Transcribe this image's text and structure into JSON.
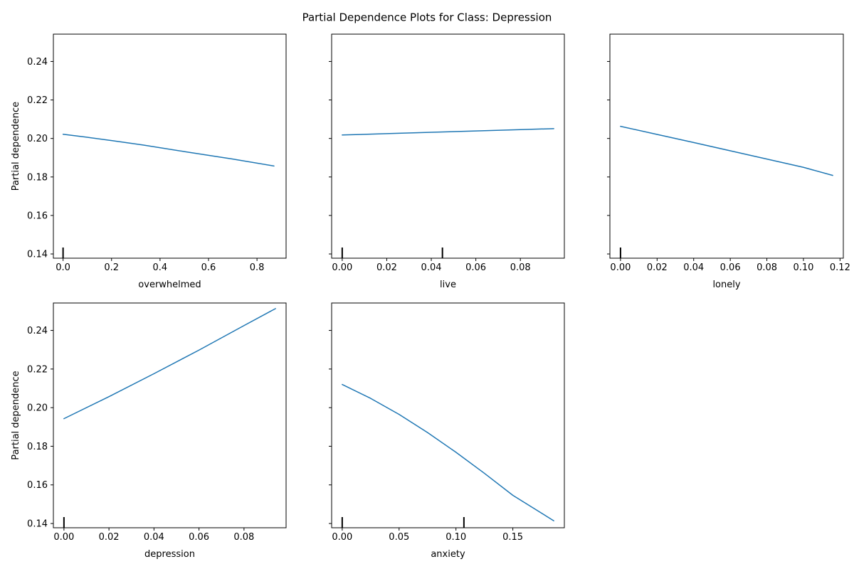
{
  "figure": {
    "title": "Partial Dependence Plots for Class: Depression"
  },
  "style": {
    "line_color": "#1f77b4",
    "axis_color": "#000000",
    "background": "#ffffff"
  },
  "chart_data": [
    {
      "type": "line",
      "xlabel": "overwhelmed",
      "ylabel": "Partial dependence",
      "xlim": [
        -0.04,
        0.92
      ],
      "ylim": [
        0.1378,
        0.2542
      ],
      "xticks": [
        0.0,
        0.2,
        0.4,
        0.6,
        0.8
      ],
      "xtick_labels": [
        "0.0",
        "0.2",
        "0.4",
        "0.6",
        "0.8"
      ],
      "yticks": [
        0.14,
        0.16,
        0.18,
        0.2,
        0.22,
        0.24
      ],
      "ytick_labels": [
        "0.14",
        "0.16",
        "0.18",
        "0.20",
        "0.22",
        "0.24"
      ],
      "show_yticklabels": true,
      "grid": false,
      "x": [
        0.0,
        0.1,
        0.2,
        0.33,
        0.5,
        0.7,
        0.87
      ],
      "y": [
        0.2022,
        0.2006,
        0.1989,
        0.1966,
        0.1932,
        0.1893,
        0.1857
      ],
      "rug": [
        0.0
      ]
    },
    {
      "type": "line",
      "xlabel": "live",
      "ylabel": "",
      "xlim": [
        -0.00475,
        0.09975
      ],
      "ylim": [
        0.1378,
        0.2542
      ],
      "xticks": [
        0.0,
        0.02,
        0.04,
        0.06,
        0.08
      ],
      "xtick_labels": [
        "0.00",
        "0.02",
        "0.04",
        "0.06",
        "0.08"
      ],
      "yticks": [
        0.14,
        0.16,
        0.18,
        0.2,
        0.22,
        0.24
      ],
      "ytick_labels": [
        "0.14",
        "0.16",
        "0.18",
        "0.20",
        "0.22",
        "0.24"
      ],
      "show_yticklabels": false,
      "grid": false,
      "x": [
        0.0,
        0.02,
        0.04,
        0.06,
        0.08,
        0.095
      ],
      "y": [
        0.2018,
        0.2025,
        0.2032,
        0.2039,
        0.2046,
        0.2051
      ],
      "rug": [
        0.0,
        0.045
      ]
    },
    {
      "type": "line",
      "xlabel": "lonely",
      "ylabel": "",
      "xlim": [
        -0.0058,
        0.1218
      ],
      "ylim": [
        0.1378,
        0.2542
      ],
      "xticks": [
        0.0,
        0.02,
        0.04,
        0.06,
        0.08,
        0.1,
        0.12
      ],
      "xtick_labels": [
        "0.00",
        "0.02",
        "0.04",
        "0.06",
        "0.08",
        "0.10",
        "0.12"
      ],
      "yticks": [
        0.14,
        0.16,
        0.18,
        0.2,
        0.22,
        0.24
      ],
      "ytick_labels": [
        "0.14",
        "0.16",
        "0.18",
        "0.20",
        "0.22",
        "0.24"
      ],
      "show_yticklabels": false,
      "grid": false,
      "x": [
        0.0,
        0.02,
        0.04,
        0.06,
        0.08,
        0.1,
        0.116
      ],
      "y": [
        0.2063,
        0.2021,
        0.1979,
        0.1936,
        0.1893,
        0.185,
        0.1808
      ],
      "rug": [
        0.0
      ]
    },
    {
      "type": "line",
      "xlabel": "depression",
      "ylabel": "Partial dependence",
      "xlim": [
        -0.0047,
        0.0987
      ],
      "ylim": [
        0.1378,
        0.2542
      ],
      "xticks": [
        0.0,
        0.02,
        0.04,
        0.06,
        0.08
      ],
      "xtick_labels": [
        "0.00",
        "0.02",
        "0.04",
        "0.06",
        "0.08"
      ],
      "yticks": [
        0.14,
        0.16,
        0.18,
        0.2,
        0.22,
        0.24
      ],
      "ytick_labels": [
        "0.14",
        "0.16",
        "0.18",
        "0.20",
        "0.22",
        "0.24"
      ],
      "show_yticklabels": true,
      "grid": false,
      "x": [
        0.0,
        0.02,
        0.04,
        0.06,
        0.08,
        0.094
      ],
      "y": [
        0.1943,
        0.2057,
        0.2176,
        0.2298,
        0.2425,
        0.2513
      ],
      "rug": [
        0.0
      ]
    },
    {
      "type": "line",
      "xlabel": "anxiety",
      "ylabel": "",
      "xlim": [
        -0.0093,
        0.1953
      ],
      "ylim": [
        0.1378,
        0.2542
      ],
      "xticks": [
        0.0,
        0.05,
        0.1,
        0.15
      ],
      "xtick_labels": [
        "0.00",
        "0.05",
        "0.10",
        "0.15"
      ],
      "yticks": [
        0.14,
        0.16,
        0.18,
        0.2,
        0.22,
        0.24
      ],
      "ytick_labels": [
        "0.14",
        "0.16",
        "0.18",
        "0.20",
        "0.22",
        "0.24"
      ],
      "show_yticklabels": false,
      "grid": false,
      "x": [
        0.0,
        0.025,
        0.05,
        0.075,
        0.1,
        0.125,
        0.15,
        0.186
      ],
      "y": [
        0.212,
        0.2048,
        0.1965,
        0.1871,
        0.1769,
        0.166,
        0.1546,
        0.1414
      ],
      "rug": [
        0.0,
        0.107
      ]
    }
  ]
}
